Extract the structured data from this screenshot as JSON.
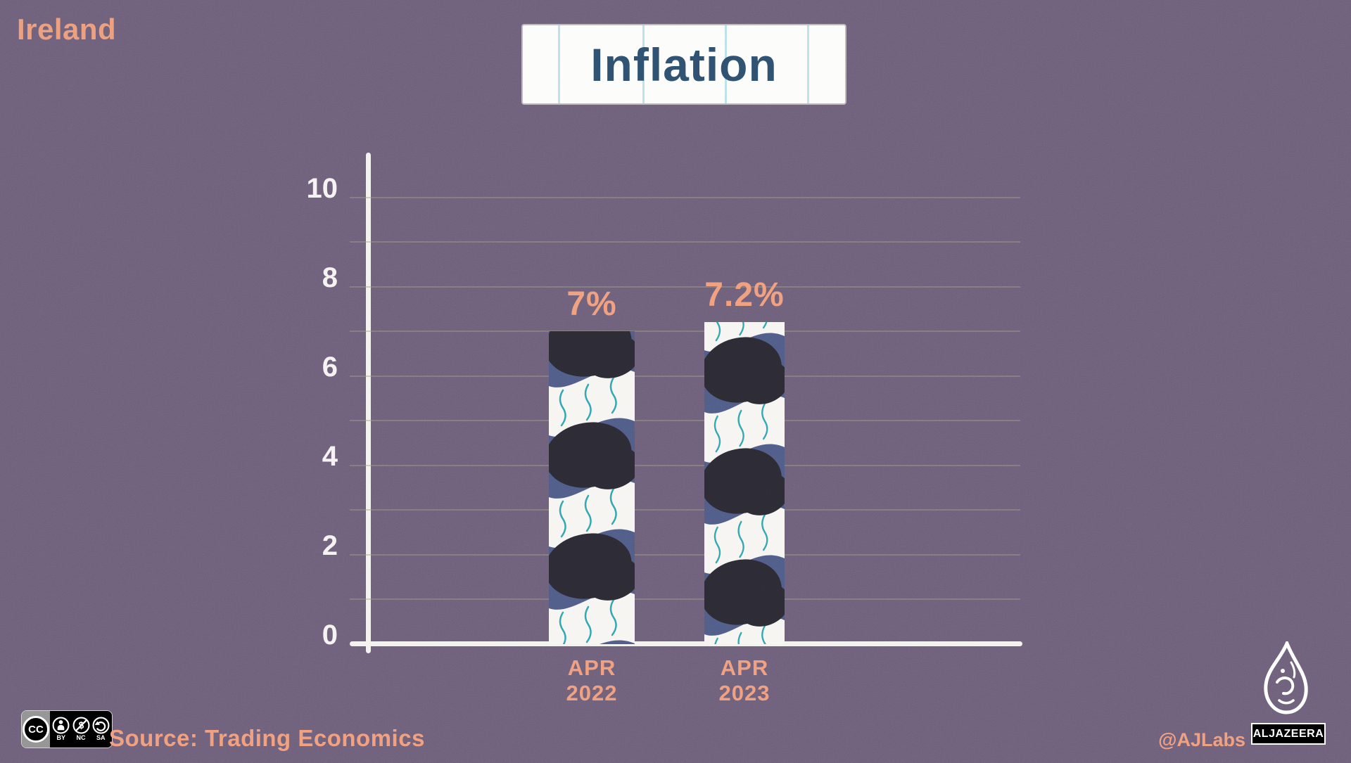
{
  "header": {
    "country": "Ireland",
    "title": "Inflation"
  },
  "chart_data": {
    "type": "bar",
    "title": "Inflation",
    "categories": [
      "APR\n2022",
      "APR\n2023"
    ],
    "values": [
      7,
      7.2
    ],
    "value_labels": [
      "7%",
      "7.2%"
    ],
    "xlabel": "",
    "ylabel": "",
    "ylim": [
      0,
      10
    ],
    "yticks": [
      0,
      2,
      4,
      6,
      8,
      10
    ],
    "grid": "horizontal, every 1 unit",
    "legend": "none",
    "bar_style": "hand-drawn rope pattern: navy ground, black blobs, white bands, teal squiggles"
  },
  "footer": {
    "license": {
      "cc_label": "CC",
      "badges": [
        "BY",
        "NC",
        "SA"
      ]
    },
    "source": "Source: Trading Economics",
    "credit": "@AJLabs",
    "brand": "ALJAZEERA"
  },
  "colors": {
    "background": "#6b5d77",
    "accent_orange": "#f09b79",
    "title_blue": "#2d4e6c",
    "bar_navy": "#4e5a84",
    "bar_black": "#2b2a33",
    "bar_white": "#f6f5f2",
    "squiggle_teal": "#2fa3ae",
    "axis_white": "#f4f2ef",
    "gridline": "#9a9a7d"
  }
}
